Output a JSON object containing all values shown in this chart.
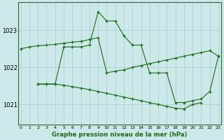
{
  "title": "Graphe pression niveau de la mer (hPa)",
  "background_color": "#cce8e8",
  "grid_color": "#aacccc",
  "line_color": "#1a6b1a",
  "yticks": [
    1021,
    1022,
    1023
  ],
  "ylim": [
    1020.45,
    1023.75
  ],
  "xlim": [
    -0.3,
    23.3
  ],
  "line_diagonal": {
    "x": [
      0,
      1,
      2,
      3,
      4,
      5,
      6,
      7,
      8,
      9,
      10,
      11,
      12,
      13,
      14,
      15,
      16,
      17,
      18,
      19,
      20,
      21,
      22,
      23
    ],
    "y": [
      1022.5,
      1022.55,
      1022.58,
      1022.6,
      1022.62,
      1022.65,
      1022.68,
      1022.7,
      1022.75,
      1022.8,
      1021.85,
      1021.9,
      1021.93,
      1022.0,
      1022.05,
      1022.1,
      1022.15,
      1022.2,
      1022.25,
      1022.3,
      1022.35,
      1022.4,
      1022.45,
      1022.3
    ]
  },
  "line_spike": {
    "x": [
      2,
      3,
      4,
      5,
      6,
      7,
      8,
      9,
      10,
      11,
      12,
      13,
      14,
      15,
      16,
      17,
      18,
      19,
      20,
      21,
      22,
      23
    ],
    "y": [
      1021.55,
      1021.55,
      1021.55,
      1022.55,
      1022.55,
      1022.55,
      1022.6,
      1023.5,
      1023.25,
      1023.25,
      1022.85,
      1022.6,
      1022.6,
      1021.85,
      1021.85,
      1021.85,
      1021.05,
      1021.05,
      1021.1,
      1021.15,
      1021.35,
      1022.3
    ]
  },
  "line_low": {
    "x": [
      2,
      3,
      4,
      5,
      6,
      7,
      8,
      9,
      10,
      11,
      12,
      13,
      14,
      15,
      16,
      17,
      18,
      19,
      20,
      21
    ],
    "y": [
      1021.55,
      1021.55,
      1021.55,
      1021.52,
      1021.48,
      1021.44,
      1021.4,
      1021.35,
      1021.3,
      1021.25,
      1021.2,
      1021.15,
      1021.1,
      1021.05,
      1021.0,
      1020.95,
      1020.9,
      1020.88,
      1021.0,
      1021.05
    ]
  }
}
